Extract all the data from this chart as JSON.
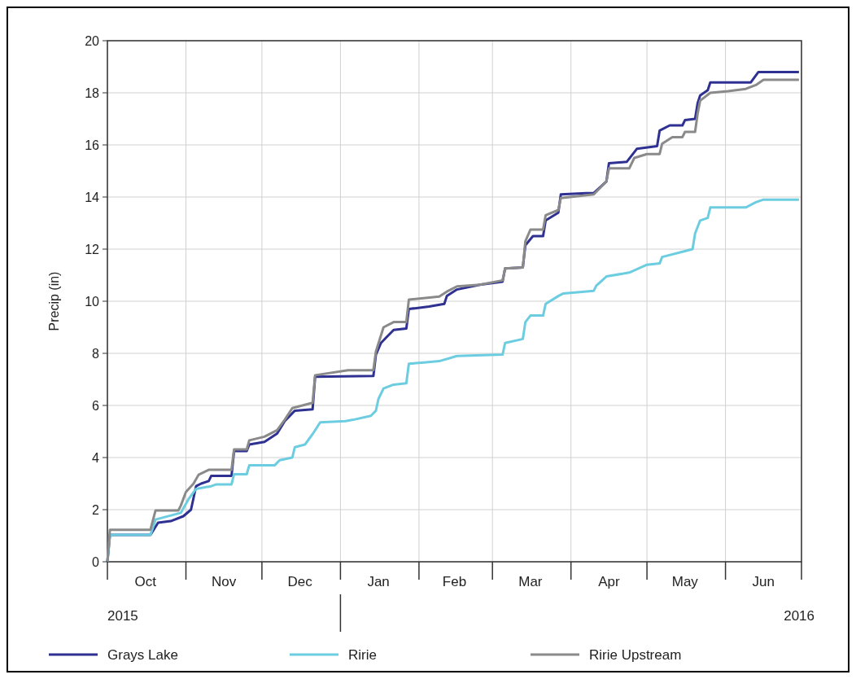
{
  "chart_data": {
    "type": "line",
    "ylabel": "Precip (in)",
    "xlim": [
      "2015-10-01",
      "2016-07-01"
    ],
    "ylim": [
      0,
      20
    ],
    "yticks": [
      0,
      2,
      4,
      6,
      8,
      10,
      12,
      14,
      16,
      18,
      20
    ],
    "xticks": [
      {
        "value": "2015-10-01",
        "label": null
      },
      {
        "value": "2015-10-16",
        "label": "Oct"
      },
      {
        "value": "2015-11-01",
        "label": null
      },
      {
        "value": "2015-11-16",
        "label": "Nov"
      },
      {
        "value": "2015-12-01",
        "label": null
      },
      {
        "value": "2015-12-16",
        "label": "Dec"
      },
      {
        "value": "2016-01-01",
        "label": null
      },
      {
        "value": "2016-01-16",
        "label": "Jan"
      },
      {
        "value": "2016-02-01",
        "label": null
      },
      {
        "value": "2016-02-15",
        "label": "Feb"
      },
      {
        "value": "2016-03-01",
        "label": null
      },
      {
        "value": "2016-03-16",
        "label": "Mar"
      },
      {
        "value": "2016-04-01",
        "label": null
      },
      {
        "value": "2016-04-16",
        "label": "Apr"
      },
      {
        "value": "2016-05-01",
        "label": null
      },
      {
        "value": "2016-05-16",
        "label": "May"
      },
      {
        "value": "2016-06-01",
        "label": null
      },
      {
        "value": "2016-06-16",
        "label": "Jun"
      },
      {
        "value": "2016-07-01",
        "label": null
      }
    ],
    "grid": true,
    "legend": "bottom",
    "annotations": [
      "2015",
      "2016"
    ],
    "series": [
      {
        "name": "Grays Lake",
        "color": "#2e3192",
        "x": [
          "2015-10-01",
          "2015-10-02",
          "2015-10-18",
          "2015-10-21",
          "2015-10-26",
          "2015-10-31",
          "2015-11-03",
          "2015-11-05",
          "2015-11-07",
          "2015-11-10",
          "2015-11-11",
          "2015-11-19",
          "2015-11-20",
          "2015-11-25",
          "2015-11-26",
          "2015-12-02",
          "2015-12-07",
          "2015-12-10",
          "2015-12-14",
          "2015-12-21",
          "2015-12-22",
          "2016-01-14",
          "2016-01-15",
          "2016-01-17",
          "2016-01-19",
          "2016-01-22",
          "2016-01-27",
          "2016-01-28",
          "2016-02-05",
          "2016-02-11",
          "2016-02-12",
          "2016-02-16",
          "2016-02-25",
          "2016-03-05",
          "2016-03-06",
          "2016-03-13",
          "2016-03-14",
          "2016-03-17",
          "2016-03-21",
          "2016-03-22",
          "2016-03-27",
          "2016-03-28",
          "2016-04-07",
          "2016-04-10",
          "2016-04-15",
          "2016-04-16",
          "2016-04-23",
          "2016-04-27",
          "2016-05-05",
          "2016-05-06",
          "2016-05-10",
          "2016-05-15",
          "2016-05-16",
          "2016-05-20",
          "2016-05-21",
          "2016-05-22",
          "2016-05-25",
          "2016-05-26",
          "2016-06-11",
          "2016-06-14",
          "2016-06-30"
        ],
        "values": [
          0,
          1.03,
          1.03,
          1.5,
          1.56,
          1.75,
          2.0,
          2.9,
          3.0,
          3.1,
          3.3,
          3.3,
          4.25,
          4.25,
          4.5,
          4.6,
          4.92,
          5.4,
          5.8,
          5.85,
          7.1,
          7.13,
          7.95,
          8.4,
          8.6,
          8.9,
          8.95,
          9.7,
          9.8,
          9.9,
          10.2,
          10.45,
          10.63,
          10.75,
          11.26,
          11.3,
          12.15,
          12.5,
          12.5,
          13.1,
          13.4,
          14.1,
          14.15,
          14.15,
          14.6,
          15.3,
          15.35,
          15.85,
          15.95,
          16.55,
          16.75,
          16.75,
          16.95,
          17.0,
          17.6,
          17.9,
          18.1,
          18.4,
          18.4,
          18.8,
          18.8
        ]
      },
      {
        "name": "Ririe",
        "color": "#6dcde0",
        "x": [
          "2015-10-01",
          "2015-10-02",
          "2015-10-18",
          "2015-10-20",
          "2015-10-30",
          "2015-11-02",
          "2015-11-05",
          "2015-11-11",
          "2015-11-13",
          "2015-11-19",
          "2015-11-20",
          "2015-11-25",
          "2015-11-26",
          "2015-12-06",
          "2015-12-08",
          "2015-12-13",
          "2015-12-14",
          "2015-12-18",
          "2015-12-21",
          "2015-12-24",
          "2016-01-03",
          "2016-01-06",
          "2016-01-13",
          "2016-01-15",
          "2016-01-16",
          "2016-01-18",
          "2016-01-22",
          "2016-01-27",
          "2016-01-28",
          "2016-02-03",
          "2016-02-09",
          "2016-02-16",
          "2016-03-05",
          "2016-03-06",
          "2016-03-13",
          "2016-03-14",
          "2016-03-16",
          "2016-03-21",
          "2016-03-22",
          "2016-03-27",
          "2016-03-29",
          "2016-04-10",
          "2016-04-11",
          "2016-04-15",
          "2016-04-24",
          "2016-05-01",
          "2016-05-06",
          "2016-05-07",
          "2016-05-15",
          "2016-05-19",
          "2016-05-20",
          "2016-05-22",
          "2016-05-25",
          "2016-05-26",
          "2016-06-09",
          "2016-06-13",
          "2016-06-16",
          "2016-06-30"
        ],
        "values": [
          0,
          1.03,
          1.03,
          1.62,
          1.88,
          2.4,
          2.8,
          2.9,
          2.97,
          2.97,
          3.36,
          3.36,
          3.7,
          3.7,
          3.9,
          4.0,
          4.4,
          4.5,
          4.9,
          5.35,
          5.4,
          5.45,
          5.6,
          5.8,
          6.25,
          6.65,
          6.8,
          6.85,
          7.6,
          7.65,
          7.7,
          7.9,
          7.95,
          8.4,
          8.55,
          9.2,
          9.45,
          9.45,
          9.9,
          10.2,
          10.3,
          10.4,
          10.6,
          10.95,
          11.1,
          11.4,
          11.45,
          11.7,
          11.9,
          12.0,
          12.6,
          13.1,
          13.2,
          13.6,
          13.6,
          13.8,
          13.9,
          13.9
        ]
      },
      {
        "name": "Ririe Upstream",
        "color": "#8a8a8a",
        "x": [
          "2015-10-01",
          "2015-10-02",
          "2015-10-18",
          "2015-10-20",
          "2015-10-29",
          "2015-10-30",
          "2015-11-01",
          "2015-11-04",
          "2015-11-06",
          "2015-11-10",
          "2015-11-19",
          "2015-11-20",
          "2015-11-25",
          "2015-11-26",
          "2015-12-02",
          "2015-12-07",
          "2015-12-10",
          "2015-12-13",
          "2015-12-21",
          "2015-12-22",
          "2016-01-04",
          "2016-01-14",
          "2016-01-15",
          "2016-01-18",
          "2016-01-22",
          "2016-01-27",
          "2016-01-28",
          "2016-02-09",
          "2016-02-12",
          "2016-02-16",
          "2016-02-25",
          "2016-03-05",
          "2016-03-06",
          "2016-03-13",
          "2016-03-14",
          "2016-03-16",
          "2016-03-21",
          "2016-03-22",
          "2016-03-27",
          "2016-03-28",
          "2016-04-10",
          "2016-04-15",
          "2016-04-16",
          "2016-04-24",
          "2016-04-26",
          "2016-05-01",
          "2016-05-06",
          "2016-05-07",
          "2016-05-11",
          "2016-05-15",
          "2016-05-16",
          "2016-05-20",
          "2016-05-21",
          "2016-05-22",
          "2016-05-26",
          "2016-06-02",
          "2016-06-09",
          "2016-06-13",
          "2016-06-16",
          "2016-06-30"
        ],
        "values": [
          0,
          1.23,
          1.23,
          1.97,
          1.97,
          2.16,
          2.68,
          3.0,
          3.34,
          3.53,
          3.53,
          4.31,
          4.31,
          4.66,
          4.8,
          5.05,
          5.45,
          5.9,
          6.1,
          7.16,
          7.35,
          7.35,
          8.07,
          9.0,
          9.2,
          9.2,
          10.06,
          10.18,
          10.37,
          10.57,
          10.63,
          10.8,
          11.26,
          11.3,
          12.3,
          12.75,
          12.75,
          13.3,
          13.5,
          13.96,
          14.1,
          14.6,
          15.1,
          15.1,
          15.5,
          15.65,
          15.65,
          16.05,
          16.3,
          16.3,
          16.5,
          16.5,
          17.2,
          17.7,
          18.0,
          18.06,
          18.15,
          18.3,
          18.5,
          18.5
        ]
      }
    ]
  }
}
